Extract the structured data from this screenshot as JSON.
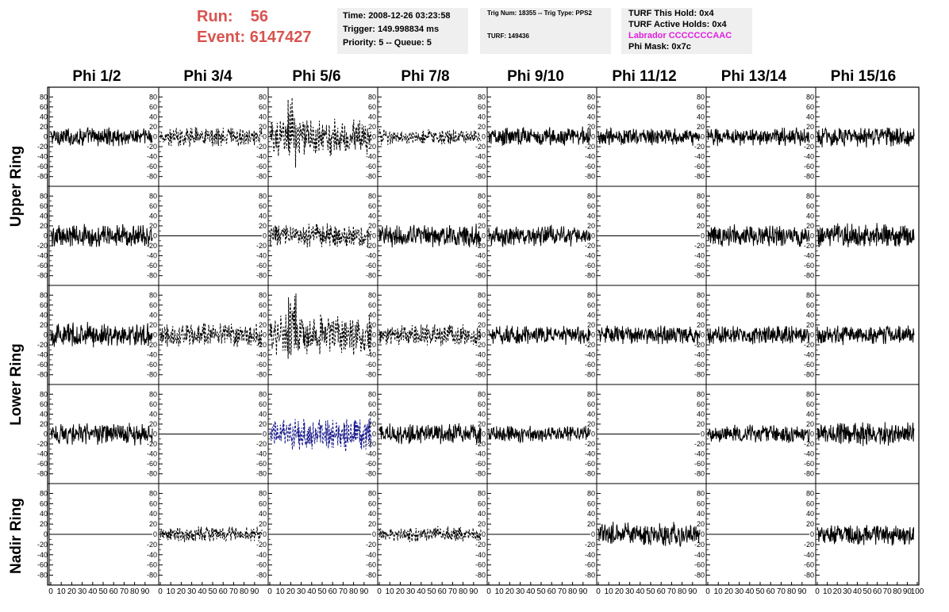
{
  "run": {
    "run_label": "Run:",
    "run_value": "56",
    "event_label": "Event:",
    "event_value": "6147427"
  },
  "time_box": {
    "time": "Time: 2008-12-26 03:23:58",
    "trigger": "Trigger: 149.998834 ms",
    "priority": "Priority: 5 -- Queue: 5"
  },
  "trig_box": {
    "trig_line": "Trig Num: 18355 -- Trig Type: PPS2",
    "turf_line": "TURF: 149436"
  },
  "turf_box": {
    "hold": "TURF This Hold: 0x4",
    "active_holds": "TURF Active Holds: 0x4",
    "labrador": "Labrador CCCCCCCAAC",
    "phi_mask": "Phi Mask: 0x7c"
  },
  "columns": [
    "Phi 1/2",
    "Phi 3/4",
    "Phi 5/6",
    "Phi 7/8",
    "Phi 9/10",
    "Phi 11/12",
    "Phi 13/14",
    "Phi 15/16"
  ],
  "row_groups": [
    "Upper Ring",
    "Lower Ring",
    "Nadir Ring"
  ],
  "colors": {
    "run_text": "#d9534f",
    "labrador": "#e020e0",
    "info_bg": "#efefef",
    "blue_trace": "#1a1a8c",
    "trace": "#000000"
  },
  "chart_data": {
    "type": "line",
    "y_ticks": [
      "80",
      "60",
      "40",
      "20",
      "0",
      "-20",
      "-40",
      "-60",
      "-80"
    ],
    "ylim": [
      -90,
      90
    ],
    "x_ticks": [
      "0",
      "10",
      "20",
      "30",
      "40",
      "50",
      "60",
      "70",
      "80",
      "90",
      "100"
    ],
    "xlim": [
      0,
      100
    ],
    "panels": [
      {
        "row": 0,
        "col": 0,
        "style": "solid",
        "amp": 14,
        "flat": false
      },
      {
        "row": 0,
        "col": 1,
        "style": "dashed",
        "amp": 14,
        "flat": false
      },
      {
        "row": 0,
        "col": 2,
        "style": "dashed",
        "amp": 28,
        "flat": false
      },
      {
        "row": 0,
        "col": 3,
        "style": "dashed",
        "amp": 11,
        "flat": false
      },
      {
        "row": 0,
        "col": 4,
        "style": "solid",
        "amp": 14,
        "flat": false
      },
      {
        "row": 0,
        "col": 5,
        "style": "solid",
        "amp": 12,
        "flat": false
      },
      {
        "row": 0,
        "col": 6,
        "style": "solid",
        "amp": 13,
        "flat": false
      },
      {
        "row": 0,
        "col": 7,
        "style": "solid",
        "amp": 15,
        "flat": false
      },
      {
        "row": 1,
        "col": 0,
        "style": "solid",
        "amp": 17,
        "flat": false
      },
      {
        "row": 1,
        "col": 1,
        "style": "solid",
        "amp": 0,
        "flat": true
      },
      {
        "row": 1,
        "col": 2,
        "style": "dashed",
        "amp": 18,
        "flat": false
      },
      {
        "row": 1,
        "col": 3,
        "style": "solid",
        "amp": 18,
        "flat": false
      },
      {
        "row": 1,
        "col": 4,
        "style": "solid",
        "amp": 15,
        "flat": false
      },
      {
        "row": 1,
        "col": 5,
        "style": "solid",
        "amp": 0,
        "flat": true
      },
      {
        "row": 1,
        "col": 6,
        "style": "solid",
        "amp": 16,
        "flat": false
      },
      {
        "row": 1,
        "col": 7,
        "style": "solid",
        "amp": 18,
        "flat": false
      },
      {
        "row": 2,
        "col": 0,
        "style": "solid",
        "amp": 18,
        "flat": false
      },
      {
        "row": 2,
        "col": 1,
        "style": "dashed",
        "amp": 18,
        "flat": false
      },
      {
        "row": 2,
        "col": 2,
        "style": "dashed",
        "amp": 30,
        "flat": false
      },
      {
        "row": 2,
        "col": 3,
        "style": "dashed",
        "amp": 16,
        "flat": false
      },
      {
        "row": 2,
        "col": 4,
        "style": "solid",
        "amp": 14,
        "flat": false
      },
      {
        "row": 2,
        "col": 5,
        "style": "solid",
        "amp": 14,
        "flat": false
      },
      {
        "row": 2,
        "col": 6,
        "style": "solid",
        "amp": 14,
        "flat": false
      },
      {
        "row": 2,
        "col": 7,
        "style": "solid",
        "amp": 14,
        "flat": false
      },
      {
        "row": 3,
        "col": 0,
        "style": "solid",
        "amp": 16,
        "flat": false
      },
      {
        "row": 3,
        "col": 1,
        "style": "solid",
        "amp": 0,
        "flat": true
      },
      {
        "row": 3,
        "col": 2,
        "style": "dashed-blue",
        "amp": 24,
        "flat": false
      },
      {
        "row": 3,
        "col": 3,
        "style": "solid",
        "amp": 15,
        "flat": false
      },
      {
        "row": 3,
        "col": 4,
        "style": "solid",
        "amp": 12,
        "flat": false
      },
      {
        "row": 3,
        "col": 5,
        "style": "solid",
        "amp": 0,
        "flat": true
      },
      {
        "row": 3,
        "col": 6,
        "style": "solid",
        "amp": 13,
        "flat": false
      },
      {
        "row": 3,
        "col": 7,
        "style": "solid",
        "amp": 17,
        "flat": false
      },
      {
        "row": 4,
        "col": 0,
        "style": "solid",
        "amp": 0,
        "flat": true
      },
      {
        "row": 4,
        "col": 1,
        "style": "dashed",
        "amp": 11,
        "flat": false
      },
      {
        "row": 4,
        "col": 2,
        "style": "solid",
        "amp": 0,
        "flat": true
      },
      {
        "row": 4,
        "col": 3,
        "style": "dashed",
        "amp": 11,
        "flat": false
      },
      {
        "row": 4,
        "col": 4,
        "style": "solid",
        "amp": 0,
        "flat": true
      },
      {
        "row": 4,
        "col": 5,
        "style": "solid",
        "amp": 17,
        "flat": false
      },
      {
        "row": 4,
        "col": 6,
        "style": "solid",
        "amp": 0,
        "flat": true
      },
      {
        "row": 4,
        "col": 7,
        "style": "solid",
        "amp": 15,
        "flat": false
      }
    ]
  }
}
